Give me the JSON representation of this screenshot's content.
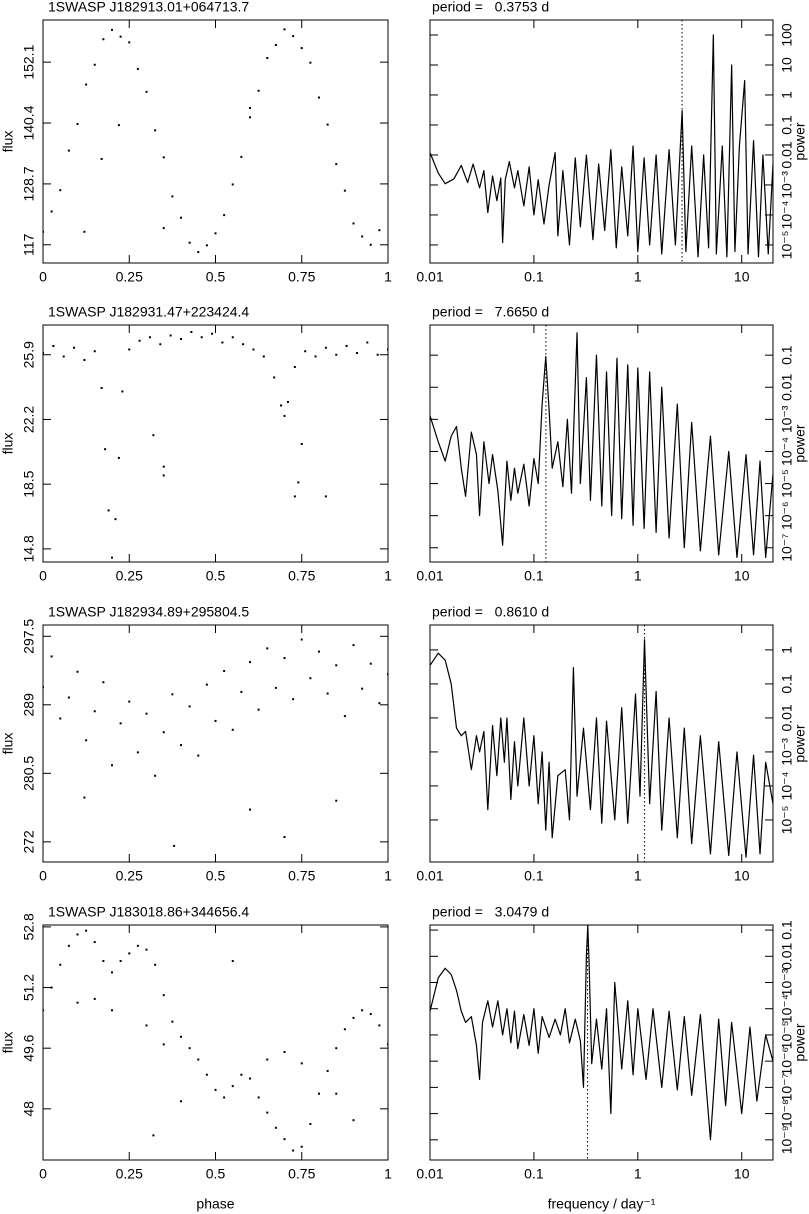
{
  "chart_data": [
    {
      "type": "scatter",
      "title": "1SWASP J182913.01+064713.7",
      "ylabel": "flux",
      "yaxis_position": "left",
      "color": "#000000",
      "xlim": [
        0,
        1
      ],
      "ylim": [
        113.5,
        160.2
      ],
      "xticks": [
        0,
        0.25,
        0.5,
        0.75,
        1
      ],
      "yticks": [
        117,
        128.7,
        140.4,
        152.1
      ],
      "x": [
        0,
        0.025,
        0.05,
        0.075,
        0.1,
        0.125,
        0.15,
        0.175,
        0.2,
        0.225,
        0.25,
        0.275,
        0.3,
        0.325,
        0.35,
        0.375,
        0.4,
        0.425,
        0.45,
        0.475,
        0.5,
        0.525,
        0.55,
        0.575,
        0.6,
        0.625,
        0.65,
        0.675,
        0.7,
        0.725,
        0.75,
        0.775,
        0.8,
        0.825,
        0.85,
        0.875,
        0.9,
        0.925,
        0.95,
        0.975,
        0.17,
        0.35,
        0.6,
        0.22,
        0.12
      ],
      "values": [
        119.5,
        123.4,
        127.5,
        135.1,
        140.2,
        147.8,
        151.6,
        156.5,
        158.3,
        157.0,
        155.9,
        150.8,
        146.4,
        139.0,
        133.8,
        126.3,
        122.2,
        117.4,
        115.6,
        116.9,
        119.2,
        122.7,
        128.6,
        133.9,
        141.5,
        146.6,
        152.9,
        155.4,
        158.4,
        157.1,
        154.8,
        152.0,
        145.3,
        140.1,
        132.5,
        127.4,
        121.1,
        118.6,
        117.0,
        119.8,
        133.5,
        120.2,
        143.3,
        140.0,
        119.5
      ]
    },
    {
      "type": "line",
      "title": "period =   0.3753 d",
      "ylabel": "power",
      "yaxis_position": "right",
      "xscale": "log",
      "yscale": "log",
      "color": "#000000",
      "period_marker_frequency": 2.665,
      "xlim": [
        0.01,
        20
      ],
      "ylim": [
        2.5e-06,
        316
      ],
      "xticks": [
        0.01,
        0.1,
        1,
        10
      ],
      "yticks": [
        {
          "value": 1e-05,
          "label": "10⁻⁵"
        },
        {
          "value": 0.0001,
          "label": "10⁻⁴"
        },
        {
          "value": 0.001,
          "label": "10⁻³"
        },
        0.01,
        0.1,
        1,
        10,
        100
      ],
      "x": [
        0.01,
        0.012,
        0.014,
        0.017,
        0.02,
        0.023,
        0.026,
        0.03,
        0.033,
        0.036,
        0.04,
        0.044,
        0.048,
        0.05,
        0.053,
        0.058,
        0.065,
        0.07,
        0.08,
        0.09,
        0.1,
        0.11,
        0.125,
        0.14,
        0.16,
        0.17,
        0.19,
        0.22,
        0.25,
        0.28,
        0.32,
        0.37,
        0.42,
        0.48,
        0.55,
        0.62,
        0.7,
        0.8,
        0.9,
        1.0,
        1.15,
        1.3,
        1.5,
        1.7,
        2.0,
        2.3,
        2.67,
        2.9,
        3.3,
        3.8,
        4.3,
        4.8,
        5.33,
        5.7,
        6.5,
        7.2,
        8.0,
        8.6,
        9.5,
        10.67,
        11.5,
        13,
        14.5,
        16,
        18,
        20
      ],
      "values": [
        0.012,
        0.0025,
        0.0011,
        0.0016,
        0.0045,
        0.0012,
        0.005,
        0.0008,
        0.003,
        0.00012,
        0.002,
        0.0003,
        0.0017,
        1.2e-05,
        0.0015,
        0.006,
        0.0008,
        0.003,
        0.0002,
        0.004,
        0.0001,
        0.0015,
        5e-05,
        0.001,
        0.012,
        2e-05,
        0.003,
        1e-05,
        0.008,
        4e-05,
        0.01,
        1.5e-05,
        0.005,
        3e-05,
        0.015,
        8e-06,
        0.004,
        2e-05,
        0.02,
        6e-06,
        0.008,
        1e-05,
        0.01,
        5e-06,
        0.015,
        1e-05,
        0.3,
        6e-06,
        0.02,
        4e-06,
        0.01,
        8e-06,
        100,
        5e-06,
        0.02,
        4e-06,
        10,
        6e-06,
        0.02,
        3,
        5e-06,
        0.03,
        4e-06,
        0.01,
        5e-06,
        0.005
      ]
    },
    {
      "type": "scatter",
      "title": "1SWASP J182931.47+223424.4",
      "ylabel": "flux",
      "yaxis_position": "left",
      "color": "#000000",
      "xlim": [
        0,
        1
      ],
      "ylim": [
        14.05,
        27.6
      ],
      "xticks": [
        0,
        0.25,
        0.5,
        0.75,
        1
      ],
      "yticks": [
        14.8,
        18.5,
        22.2,
        25.9
      ],
      "x": [
        0,
        0.03,
        0.06,
        0.09,
        0.12,
        0.15,
        0.17,
        0.18,
        0.19,
        0.2,
        0.21,
        0.22,
        0.23,
        0.25,
        0.28,
        0.31,
        0.34,
        0.37,
        0.4,
        0.43,
        0.46,
        0.49,
        0.52,
        0.55,
        0.58,
        0.61,
        0.64,
        0.67,
        0.69,
        0.7,
        0.71,
        0.73,
        0.76,
        0.79,
        0.82,
        0.85,
        0.88,
        0.91,
        0.94,
        0.97,
        1.0,
        0.35,
        0.35,
        0.32,
        0.74,
        0.75,
        0.82,
        0.73
      ],
      "values": [
        26.0,
        26.4,
        25.8,
        26.3,
        25.6,
        26.1,
        24.0,
        20.5,
        17.0,
        14.3,
        16.5,
        20.0,
        23.8,
        26.2,
        26.7,
        26.9,
        26.5,
        27.0,
        26.8,
        27.2,
        26.9,
        27.1,
        26.6,
        26.9,
        26.5,
        26.2,
        25.8,
        24.6,
        23.0,
        22.4,
        23.2,
        25.2,
        26.1,
        25.8,
        26.3,
        25.9,
        26.4,
        26.0,
        26.6,
        25.9,
        26.2,
        19.5,
        19.0,
        21.3,
        18.6,
        20.8,
        17.8,
        17.8
      ]
    },
    {
      "type": "line",
      "title": "period =   7.6650 d",
      "ylabel": "power",
      "yaxis_position": "right",
      "xscale": "log",
      "yscale": "log",
      "color": "#000000",
      "period_marker_frequency": 0.13046,
      "xlim": [
        0.01,
        20
      ],
      "ylim": [
        3.6e-08,
        0.87
      ],
      "xticks": [
        0.01,
        0.1,
        1,
        10
      ],
      "yticks": [
        {
          "value": 1e-07,
          "label": "10⁻⁷"
        },
        {
          "value": 1e-06,
          "label": "10⁻⁶"
        },
        {
          "value": 1e-05,
          "label": "10⁻⁵"
        },
        {
          "value": 0.0001,
          "label": "10⁻⁴"
        },
        {
          "value": 0.001,
          "label": "10⁻³"
        },
        0.01,
        0.1
      ],
      "x": [
        0.01,
        0.012,
        0.014,
        0.016,
        0.018,
        0.02,
        0.022,
        0.025,
        0.028,
        0.03,
        0.033,
        0.037,
        0.04,
        0.045,
        0.05,
        0.055,
        0.06,
        0.065,
        0.07,
        0.08,
        0.09,
        0.1,
        0.11,
        0.12,
        0.13,
        0.14,
        0.15,
        0.17,
        0.19,
        0.21,
        0.23,
        0.26,
        0.28,
        0.32,
        0.35,
        0.4,
        0.45,
        0.5,
        0.56,
        0.63,
        0.7,
        0.8,
        0.9,
        1.0,
        1.15,
        1.3,
        1.5,
        1.7,
        2.0,
        2.4,
        2.8,
        3.3,
        4,
        5,
        6,
        7.5,
        9,
        11,
        13,
        15,
        17,
        20
      ],
      "values": [
        0.0013,
        0.0002,
        5e-05,
        0.0003,
        0.0006,
        3e-05,
        4e-06,
        0.0004,
        8e-05,
        1e-06,
        0.0002,
        1e-05,
        8e-05,
        6e-06,
        1.2e-07,
        5e-05,
        3e-06,
        3e-05,
        5e-06,
        4e-05,
        2e-06,
        6e-05,
        1e-05,
        0.003,
        0.09,
        0.002,
        3e-05,
        0.0002,
        8e-06,
        0.001,
        5e-06,
        0.5,
        1e-05,
        0.02,
        3e-06,
        0.1,
        2e-06,
        0.03,
        1e-06,
        0.08,
        8e-07,
        0.05,
        5e-07,
        0.04,
        4e-07,
        0.03,
        3e-07,
        0.01,
        2e-07,
        0.003,
        1e-07,
        0.0008,
        8e-08,
        0.0003,
        6e-08,
        0.0001,
        5e-08,
        8e-05,
        6e-08,
        5e-05,
        5e-08,
        2e-05
      ]
    },
    {
      "type": "scatter",
      "title": "1SWASP J182934.89+295804.5",
      "ylabel": "flux",
      "yaxis_position": "left",
      "color": "#000000",
      "xlim": [
        0,
        1
      ],
      "ylim": [
        269.5,
        298.9
      ],
      "xticks": [
        0,
        0.25,
        0.5,
        0.75,
        1
      ],
      "yticks": [
        272,
        280.5,
        289,
        297.5
      ],
      "x": [
        0,
        0.025,
        0.05,
        0.075,
        0.1,
        0.125,
        0.15,
        0.175,
        0.2,
        0.225,
        0.25,
        0.275,
        0.3,
        0.325,
        0.35,
        0.375,
        0.4,
        0.425,
        0.45,
        0.475,
        0.5,
        0.525,
        0.55,
        0.575,
        0.6,
        0.625,
        0.65,
        0.675,
        0.7,
        0.725,
        0.75,
        0.775,
        0.8,
        0.825,
        0.85,
        0.875,
        0.9,
        0.925,
        0.95,
        0.975,
        1,
        0.38,
        0.7,
        0.12,
        0.85,
        0.6
      ],
      "values": [
        291.2,
        295.0,
        287.3,
        289.9,
        293.1,
        284.6,
        288.2,
        291.8,
        281.5,
        286.7,
        289.4,
        283.1,
        287.9,
        280.2,
        285.6,
        290.3,
        284.0,
        288.8,
        282.7,
        291.5,
        287.0,
        293.2,
        285.9,
        290.6,
        294.3,
        288.4,
        296.0,
        291.1,
        294.8,
        289.7,
        297.1,
        292.3,
        295.6,
        290.4,
        293.9,
        287.6,
        296.4,
        291.0,
        294.1,
        289.2,
        292.8,
        271.5,
        272.6,
        277.5,
        277.1,
        276.0
      ]
    },
    {
      "type": "line",
      "title": "period =   0.8610 d",
      "ylabel": "power",
      "yaxis_position": "right",
      "xscale": "log",
      "yscale": "log",
      "color": "#000000",
      "period_marker_frequency": 1.1614,
      "xlim": [
        0.01,
        20
      ],
      "ylim": [
        5.8e-07,
        5.4
      ],
      "xticks": [
        0.01,
        0.1,
        1,
        10
      ],
      "yticks": [
        {
          "value": 1e-05,
          "label": "10⁻⁵"
        },
        {
          "value": 0.0001,
          "label": "10⁻⁴"
        },
        {
          "value": 0.001,
          "label": "10⁻³"
        },
        0.01,
        0.1,
        1
      ],
      "x": [
        0.01,
        0.012,
        0.014,
        0.016,
        0.018,
        0.02,
        0.022,
        0.025,
        0.028,
        0.03,
        0.033,
        0.036,
        0.04,
        0.044,
        0.048,
        0.052,
        0.055,
        0.06,
        0.065,
        0.07,
        0.08,
        0.09,
        0.1,
        0.11,
        0.12,
        0.13,
        0.14,
        0.15,
        0.17,
        0.2,
        0.22,
        0.24,
        0.26,
        0.3,
        0.35,
        0.4,
        0.45,
        0.5,
        0.6,
        0.7,
        0.8,
        0.95,
        1.05,
        1.16,
        1.3,
        1.5,
        1.7,
        2,
        2.4,
        2.8,
        3.3,
        4,
        5,
        6,
        7.5,
        9,
        11,
        13,
        15,
        17,
        20
      ],
      "values": [
        0.35,
        0.8,
        0.5,
        0.1,
        0.005,
        0.003,
        0.004,
        0.0003,
        0.003,
        0.001,
        0.004,
        2e-05,
        0.006,
        0.0002,
        0.01,
        0.0005,
        0.01,
        4e-05,
        0.002,
        0.0001,
        0.01,
        0.0001,
        0.003,
        3e-05,
        0.001,
        5e-06,
        0.0005,
        3e-06,
        0.0002,
        0.0003,
        1e-05,
        0.3,
        5e-05,
        0.005,
        2e-05,
        0.01,
        8e-06,
        0.008,
        1e-05,
        0.02,
        8e-06,
        0.05,
        5e-05,
        2,
        3e-05,
        0.06,
        5e-06,
        0.01,
        3e-06,
        0.005,
        2e-06,
        0.003,
        1e-06,
        0.002,
        9e-07,
        0.001,
        8e-07,
        0.0008,
        1e-06,
        0.0005,
        3e-05
      ]
    },
    {
      "type": "scatter",
      "title": "1SWASP J183018.86+344656.4",
      "ylabel": "flux",
      "xlabel": "phase",
      "yaxis_position": "left",
      "color": "#000000",
      "xlim": [
        0,
        1
      ],
      "ylim": [
        46.65,
        52.85
      ],
      "xticks": [
        0,
        0.25,
        0.5,
        0.75,
        1
      ],
      "yticks": [
        48,
        49.6,
        51.2,
        52.8
      ],
      "x": [
        0,
        0.025,
        0.05,
        0.075,
        0.1,
        0.125,
        0.15,
        0.175,
        0.2,
        0.225,
        0.25,
        0.275,
        0.3,
        0.325,
        0.35,
        0.375,
        0.4,
        0.425,
        0.45,
        0.475,
        0.5,
        0.525,
        0.55,
        0.575,
        0.6,
        0.625,
        0.65,
        0.675,
        0.7,
        0.725,
        0.75,
        0.775,
        0.8,
        0.825,
        0.85,
        0.875,
        0.9,
        0.925,
        0.95,
        0.975,
        1,
        0.1,
        0.15,
        0.2,
        0.3,
        0.35,
        0.65,
        0.7,
        0.75,
        0.85,
        0.4,
        0.32,
        0.9,
        0.55
      ],
      "values": [
        50.6,
        51.2,
        51.8,
        52.3,
        52.6,
        52.7,
        52.4,
        51.9,
        51.6,
        51.9,
        52.1,
        52.3,
        52.2,
        51.8,
        51.0,
        50.3,
        49.9,
        49.6,
        49.3,
        48.9,
        48.5,
        48.3,
        48.6,
        48.9,
        48.8,
        48.3,
        47.9,
        47.5,
        47.2,
        46.9,
        47.0,
        47.6,
        48.4,
        49.0,
        49.6,
        50.1,
        50.4,
        50.6,
        50.5,
        50.2,
        49.7,
        50.8,
        50.9,
        50.6,
        50.2,
        49.7,
        49.3,
        49.5,
        49.2,
        48.4,
        48.2,
        47.3,
        47.7,
        51.9
      ]
    },
    {
      "type": "line",
      "title": "period =   3.0479 d",
      "ylabel": "power",
      "xlabel": "frequency / day⁻¹",
      "yaxis_position": "right",
      "xscale": "log",
      "yscale": "log",
      "color": "#000000",
      "period_marker_frequency": 0.3281,
      "xlim": [
        0.01,
        20
      ],
      "ylim": [
        1.7e-10,
        0.156
      ],
      "xticks": [
        0.01,
        0.1,
        1,
        10
      ],
      "yticks": [
        {
          "value": 1e-09,
          "label": "10⁻⁹"
        },
        {
          "value": 1e-08,
          "label": "10⁻⁸"
        },
        {
          "value": 1e-07,
          "label": "10⁻⁷"
        },
        {
          "value": 1e-06,
          "label": "10⁻⁶"
        },
        {
          "value": 1e-05,
          "label": "10⁻⁵"
        },
        {
          "value": 0.0001,
          "label": "10⁻⁴"
        },
        {
          "value": 0.001,
          "label": "10⁻³"
        },
        0.01,
        0.1
      ],
      "x": [
        0.01,
        0.012,
        0.014,
        0.016,
        0.018,
        0.02,
        0.022,
        0.025,
        0.028,
        0.03,
        0.032,
        0.036,
        0.04,
        0.045,
        0.05,
        0.055,
        0.06,
        0.065,
        0.07,
        0.08,
        0.09,
        0.1,
        0.11,
        0.12,
        0.14,
        0.16,
        0.18,
        0.2,
        0.22,
        0.25,
        0.28,
        0.3,
        0.32,
        0.33,
        0.34,
        0.36,
        0.4,
        0.45,
        0.5,
        0.55,
        0.6,
        0.7,
        0.8,
        0.9,
        1,
        1.2,
        1.4,
        1.7,
        2,
        2.4,
        2.8,
        3.3,
        4,
        5,
        6,
        7,
        8,
        10,
        12,
        14,
        17,
        20
      ],
      "values": [
        8e-05,
        0.0015,
        0.0035,
        0.002,
        0.0005,
        8e-05,
        3e-05,
        5e-05,
        4e-06,
        2e-07,
        3e-05,
        0.0002,
        2e-05,
        0.0002,
        1e-05,
        0.0001,
        5e-06,
        8e-05,
        3e-06,
        6e-05,
        4e-06,
        0.0001,
        2e-06,
        5e-05,
        8e-06,
        4e-05,
        1e-05,
        0.0001,
        5e-06,
        4e-05,
        6e-06,
        1e-07,
        0.01,
        0.15,
        0.005,
        8e-07,
        4e-05,
        5e-07,
        0.0001,
        1e-08,
        0.001,
        5e-07,
        0.0002,
        3e-07,
        0.0001,
        2e-07,
        0.0001,
        1e-07,
        8e-05,
        8e-08,
        5e-05,
        5e-08,
        6e-05,
        1e-09,
        4e-05,
        2e-08,
        3e-05,
        1e-08,
        2e-05,
        3e-08,
        1e-05,
        1e-06
      ]
    }
  ]
}
